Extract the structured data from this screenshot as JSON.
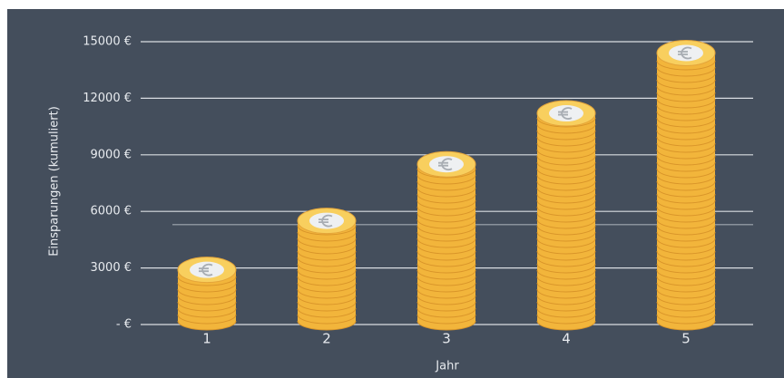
{
  "chart_data": {
    "type": "coin-stack",
    "y_axis_label": "Einsparungen (kumuliert)",
    "x_axis_label": "Jahr",
    "categories": [
      "1",
      "2",
      "3",
      "4",
      "5"
    ],
    "values": [
      2900,
      5500,
      8500,
      11200,
      14400
    ],
    "color": "#f2b53b",
    "reference_line": 5300,
    "ylim": [
      0,
      15000
    ],
    "yticks": [
      {
        "value": 0,
        "label": "- €"
      },
      {
        "value": 3000,
        "label": "3000 €"
      },
      {
        "value": 6000,
        "label": "6000 €"
      },
      {
        "value": 9000,
        "label": "9000 €"
      },
      {
        "value": 12000,
        "label": "12000 €"
      },
      {
        "value": 15000,
        "label": "15000 €"
      }
    ],
    "grid": true
  }
}
